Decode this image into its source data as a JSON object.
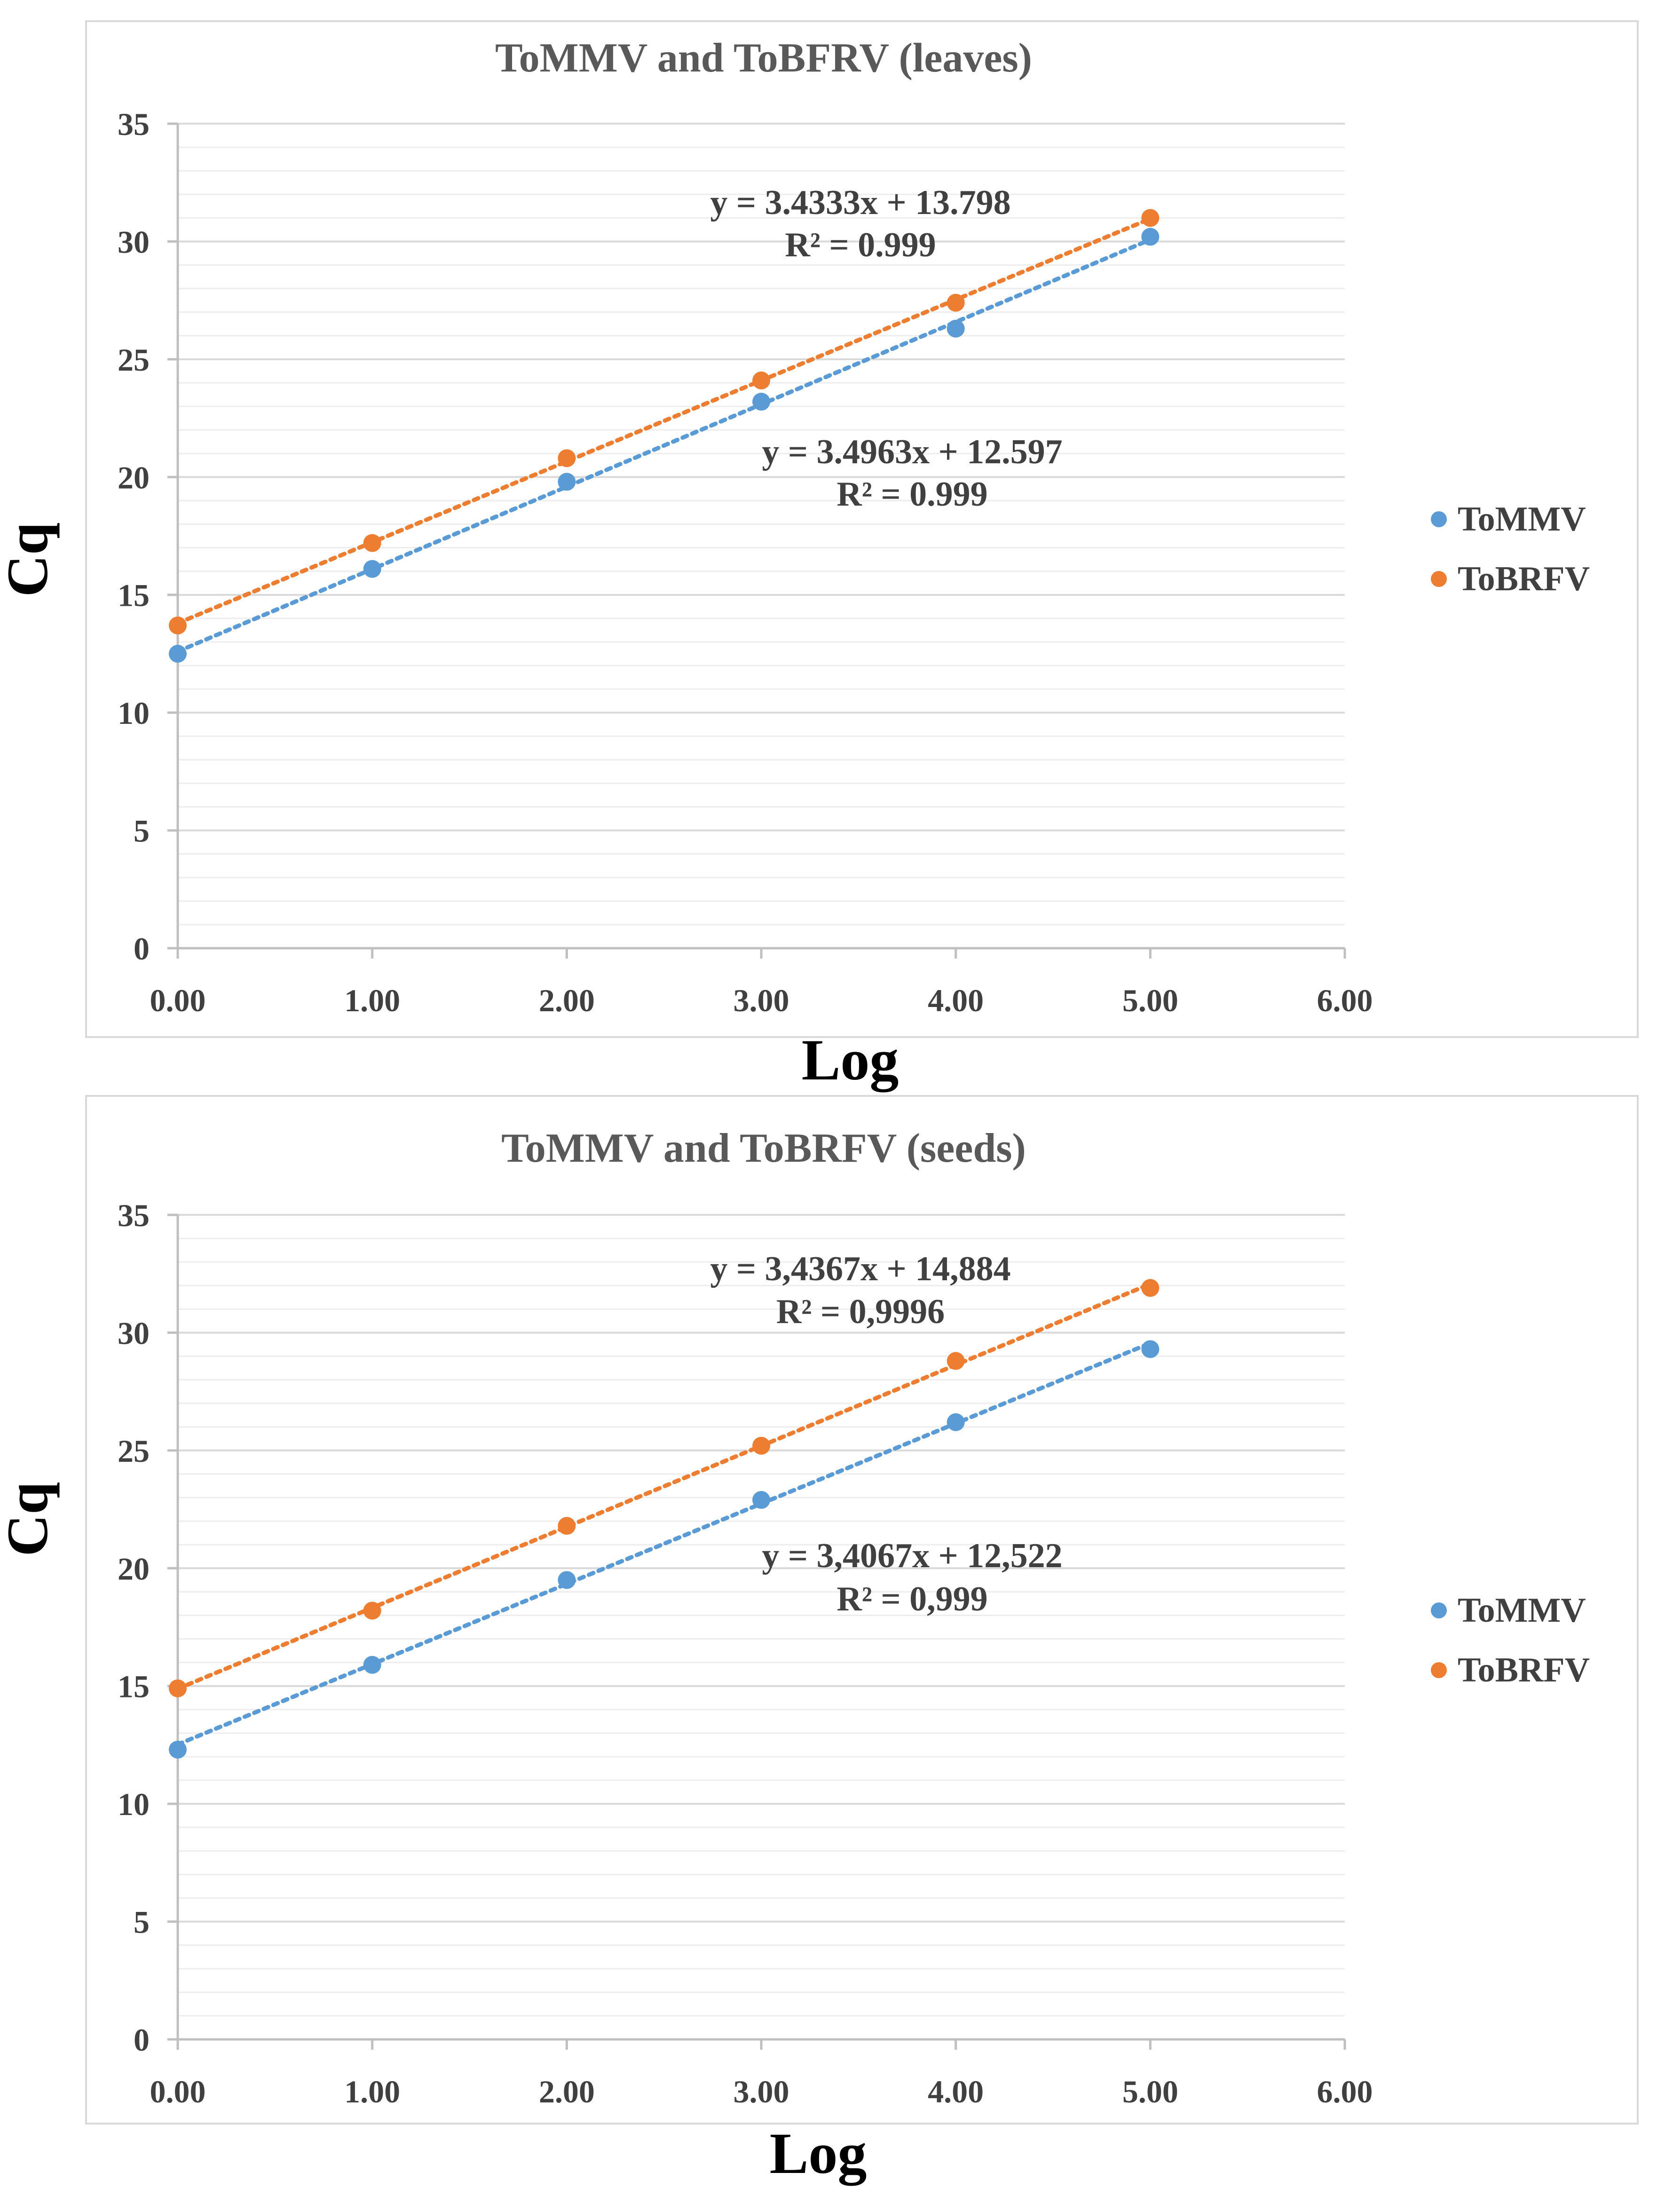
{
  "colors": {
    "tommv": "#5b9bd5",
    "tobrfv": "#ed7d31"
  },
  "chart_data": [
    {
      "type": "scatter",
      "title": "ToMMV and ToBFRV (leaves)",
      "xlabel": "Log",
      "ylabel": "Cq",
      "xlim": [
        0,
        6
      ],
      "ylim": [
        0,
        35
      ],
      "x_ticks": [
        "0.00",
        "1.00",
        "2.00",
        "3.00",
        "4.00",
        "5.00",
        "6.00"
      ],
      "y_ticks": [
        "0",
        "5",
        "10",
        "15",
        "20",
        "25",
        "30",
        "35"
      ],
      "legend": [
        "ToMMV",
        "ToBRFV"
      ],
      "legend_position": "right",
      "series": [
        {
          "name": "ToMMV",
          "color": "#5b9bd5",
          "x": [
            0,
            1,
            2,
            3,
            4,
            5
          ],
          "y": [
            12.5,
            16.1,
            19.8,
            23.2,
            26.3,
            30.2
          ],
          "trendline": {
            "slope": 3.4963,
            "intercept": 12.597
          },
          "equation": "y = 3.4963x + 12.597",
          "r2": "R² = 0.999"
        },
        {
          "name": "ToBRFV",
          "color": "#ed7d31",
          "x": [
            0,
            1,
            2,
            3,
            4,
            5
          ],
          "y": [
            13.7,
            17.2,
            20.8,
            24.1,
            27.4,
            31.0
          ],
          "trendline": {
            "slope": 3.4333,
            "intercept": 13.798
          },
          "equation": "y = 3.4333x + 13.798",
          "r2": "R² = 0.999"
        }
      ]
    },
    {
      "type": "scatter",
      "title": "ToMMV and ToBRFV (seeds)",
      "xlabel": "Log",
      "ylabel": "Cq",
      "xlim": [
        0,
        6
      ],
      "ylim": [
        0,
        35
      ],
      "x_ticks": [
        "0.00",
        "1.00",
        "2.00",
        "3.00",
        "4.00",
        "5.00",
        "6.00"
      ],
      "y_ticks": [
        "0",
        "5",
        "10",
        "15",
        "20",
        "25",
        "30",
        "35"
      ],
      "legend": [
        "ToMMV",
        "ToBRFV"
      ],
      "legend_position": "right",
      "series": [
        {
          "name": "ToMMV",
          "color": "#5b9bd5",
          "x": [
            0,
            1,
            2,
            3,
            4,
            5
          ],
          "y": [
            12.3,
            15.9,
            19.5,
            22.9,
            26.2,
            29.3
          ],
          "trendline": {
            "slope": 3.4067,
            "intercept": 12.522
          },
          "equation": "y = 3,4067x + 12,522",
          "r2": "R² = 0,999"
        },
        {
          "name": "ToBRFV",
          "color": "#ed7d31",
          "x": [
            0,
            1,
            2,
            3,
            4,
            5
          ],
          "y": [
            14.9,
            18.2,
            21.8,
            25.2,
            28.8,
            31.9
          ],
          "trendline": {
            "slope": 3.4367,
            "intercept": 14.884
          },
          "equation": "y = 3,4367x + 14,884",
          "r2": "R² = 0,9996"
        }
      ]
    }
  ]
}
